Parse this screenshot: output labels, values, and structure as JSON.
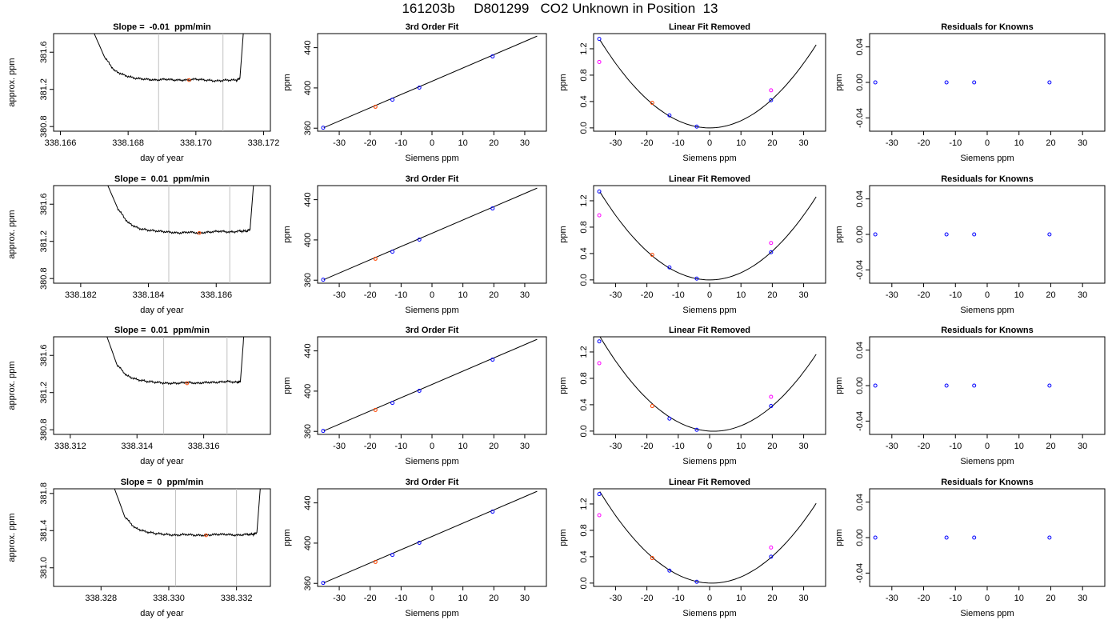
{
  "title": "161203b     D801299   CO2 Unknown in Position  13",
  "colors": {
    "known": "#0000ff",
    "unknown": "#ff00ff",
    "reference": "#ff4500",
    "curve": "#000000",
    "window": "#c0c0c0"
  },
  "chart_data": [
    {
      "type": "line",
      "row": 1,
      "title": "Slope =  -0.01  ppm/min",
      "xlabel": "day of year",
      "ylabel": "approx. ppm",
      "xlim": [
        338.1658,
        338.1722
      ],
      "ylim": [
        380.75,
        381.8
      ],
      "xticks": [
        "338.166",
        "338.168",
        "338.170",
        "338.172"
      ],
      "yticks": [
        "380.8",
        "381.2",
        "381.6"
      ],
      "window": [
        338.1689,
        338.1708
      ],
      "marker": [
        338.1698,
        381.3
      ],
      "trace": {
        "start": 338.167,
        "end": 338.1714,
        "level": 381.3,
        "x": [
          338.167,
          338.1673,
          338.1676,
          338.1679,
          338.1682,
          338.1685,
          338.1688,
          338.1691,
          338.1694,
          338.1697,
          338.17,
          338.1703,
          338.1706,
          338.1709,
          338.1712,
          338.1713,
          338.1714
        ],
        "y": [
          381.8,
          381.55,
          381.4,
          381.35,
          381.32,
          381.31,
          381.3,
          381.31,
          381.3,
          381.3,
          381.31,
          381.3,
          381.29,
          381.3,
          381.3,
          381.32,
          381.8
        ]
      }
    },
    {
      "type": "scatter",
      "row": 1,
      "title": "3rd Order Fit",
      "xlabel": "Siemens ppm",
      "ylabel": "ppm",
      "xlim": [
        -37,
        37
      ],
      "ylim": [
        357,
        454
      ],
      "xticks": [
        -30,
        -20,
        -10,
        0,
        10,
        20,
        30
      ],
      "yticks": [
        360,
        400,
        440
      ],
      "line": [
        [
          -35,
          360.5
        ],
        [
          34,
          451.5
        ]
      ],
      "points": [
        {
          "x": -35.2,
          "y": 360.5,
          "kind": "known"
        },
        {
          "x": -18.3,
          "y": 381.3,
          "kind": "reference"
        },
        {
          "x": -12.8,
          "y": 388.3,
          "kind": "known"
        },
        {
          "x": -4.1,
          "y": 400.3,
          "kind": "known"
        },
        {
          "x": 19.6,
          "y": 431.3,
          "kind": "known"
        }
      ]
    },
    {
      "type": "scatter",
      "row": 1,
      "title": "Linear Fit Removed",
      "xlabel": "Siemens ppm",
      "ylabel": "ppm",
      "xlim": [
        -37,
        37
      ],
      "ylim": [
        -0.05,
        1.43
      ],
      "xticks": [
        -30,
        -20,
        -10,
        0,
        10,
        20,
        30
      ],
      "yticks": [
        "0.0",
        "0.4",
        "0.8",
        "1.2"
      ],
      "curve": {
        "a": 0.00109,
        "b": 0,
        "c": 0,
        "from": -35,
        "to": 34
      },
      "points": [
        {
          "x": -35.2,
          "y": 1.35,
          "kind": "known"
        },
        {
          "x": -35.2,
          "y": 1.0,
          "kind": "unknown"
        },
        {
          "x": -18.3,
          "y": 0.38,
          "kind": "reference"
        },
        {
          "x": -12.8,
          "y": 0.19,
          "kind": "known"
        },
        {
          "x": -4.1,
          "y": 0.02,
          "kind": "known"
        },
        {
          "x": 19.6,
          "y": 0.42,
          "kind": "known"
        },
        {
          "x": 19.6,
          "y": 0.57,
          "kind": "unknown"
        }
      ]
    },
    {
      "type": "scatter",
      "row": 1,
      "title": "Residuals for Knowns",
      "xlabel": "Siemens ppm",
      "ylabel": "ppm",
      "xlim": [
        -37,
        37
      ],
      "ylim": [
        -0.055,
        0.055
      ],
      "xticks": [
        -30,
        -20,
        -10,
        0,
        10,
        20,
        30
      ],
      "yticks": [
        "-0.04",
        "0.00",
        "0.04"
      ],
      "points": [
        {
          "x": -35.2,
          "y": 0.0,
          "kind": "known"
        },
        {
          "x": -12.8,
          "y": 0.0,
          "kind": "known"
        },
        {
          "x": -4.1,
          "y": 0.0,
          "kind": "known"
        },
        {
          "x": 19.6,
          "y": 0.0,
          "kind": "known"
        }
      ]
    },
    {
      "type": "line",
      "row": 2,
      "title": "Slope =  0.01  ppm/min",
      "xlabel": "day of year",
      "ylabel": "approx. ppm",
      "xlim": [
        338.1812,
        338.1876
      ],
      "ylim": [
        380.75,
        381.8
      ],
      "xticks": [
        "338.182",
        "338.184",
        "338.186"
      ],
      "yticks": [
        "380.8",
        "381.2",
        "381.6"
      ],
      "window": [
        338.1846,
        338.1864
      ],
      "marker": [
        338.1855,
        381.29
      ],
      "trace": {
        "x": [
          338.1828,
          338.1831,
          338.1834,
          338.1837,
          338.184,
          338.1843,
          338.1846,
          338.1849,
          338.1852,
          338.1855,
          338.1858,
          338.1861,
          338.1864,
          338.1867,
          338.1869,
          338.187,
          338.1871
        ],
        "y": [
          381.8,
          381.55,
          381.4,
          381.34,
          381.32,
          381.31,
          381.3,
          381.29,
          381.3,
          381.29,
          381.3,
          381.31,
          381.3,
          381.31,
          381.31,
          381.33,
          381.8
        ]
      }
    },
    {
      "type": "scatter",
      "row": 2,
      "title": "3rd Order Fit",
      "xlabel": "Siemens ppm",
      "ylabel": "ppm",
      "xlim": [
        -37,
        37
      ],
      "ylim": [
        357,
        454
      ],
      "xticks": [
        -30,
        -20,
        -10,
        0,
        10,
        20,
        30
      ],
      "yticks": [
        360,
        400,
        440
      ],
      "line": [
        [
          -35,
          360.5
        ],
        [
          34,
          451.5
        ]
      ],
      "points": [
        {
          "x": -35.2,
          "y": 360.5,
          "kind": "known"
        },
        {
          "x": -18.3,
          "y": 381.3,
          "kind": "reference"
        },
        {
          "x": -12.8,
          "y": 388.3,
          "kind": "known"
        },
        {
          "x": -4.1,
          "y": 400.3,
          "kind": "known"
        },
        {
          "x": 19.6,
          "y": 431.3,
          "kind": "known"
        }
      ]
    },
    {
      "type": "scatter",
      "row": 2,
      "title": "Linear Fit Removed",
      "xlabel": "Siemens ppm",
      "ylabel": "ppm",
      "xlim": [
        -37,
        37
      ],
      "ylim": [
        -0.05,
        1.43
      ],
      "xticks": [
        -30,
        -20,
        -10,
        0,
        10,
        20,
        30
      ],
      "yticks": [
        "0.0",
        "0.4",
        "0.8",
        "1.2"
      ],
      "curve": {
        "a": 0.00109,
        "b": 0,
        "c": 0,
        "from": -35,
        "to": 34
      },
      "points": [
        {
          "x": -35.2,
          "y": 1.34,
          "kind": "known"
        },
        {
          "x": -35.2,
          "y": 0.98,
          "kind": "unknown"
        },
        {
          "x": -18.3,
          "y": 0.38,
          "kind": "reference"
        },
        {
          "x": -12.8,
          "y": 0.19,
          "kind": "known"
        },
        {
          "x": -4.1,
          "y": 0.02,
          "kind": "known"
        },
        {
          "x": 19.6,
          "y": 0.42,
          "kind": "known"
        },
        {
          "x": 19.6,
          "y": 0.56,
          "kind": "unknown"
        }
      ]
    },
    {
      "type": "scatter",
      "row": 2,
      "title": "Residuals for Knowns",
      "xlabel": "Siemens ppm",
      "ylabel": "ppm",
      "xlim": [
        -37,
        37
      ],
      "ylim": [
        -0.055,
        0.055
      ],
      "xticks": [
        -30,
        -20,
        -10,
        0,
        10,
        20,
        30
      ],
      "yticks": [
        "-0.04",
        "0.00",
        "0.04"
      ],
      "points": [
        {
          "x": -35.2,
          "y": 0.0,
          "kind": "known"
        },
        {
          "x": -12.8,
          "y": 0.0,
          "kind": "known"
        },
        {
          "x": -4.1,
          "y": 0.0,
          "kind": "known"
        },
        {
          "x": 19.6,
          "y": 0.0,
          "kind": "known"
        }
      ]
    },
    {
      "type": "line",
      "row": 3,
      "title": "Slope =  0.01  ppm/min",
      "xlabel": "day of year",
      "ylabel": "approx. ppm",
      "xlim": [
        338.3115,
        338.318
      ],
      "ylim": [
        380.75,
        381.8
      ],
      "xticks": [
        "338.312",
        "338.314",
        "338.316"
      ],
      "yticks": [
        "380.8",
        "381.2",
        "381.6"
      ],
      "window": [
        338.3148,
        338.3167
      ],
      "marker": [
        338.3155,
        381.3
      ],
      "trace": {
        "x": [
          338.3131,
          338.3134,
          338.3137,
          338.314,
          338.3143,
          338.3146,
          338.3149,
          338.3152,
          338.3155,
          338.3158,
          338.3161,
          338.3164,
          338.3167,
          338.317,
          338.3171,
          338.3172
        ],
        "y": [
          381.8,
          381.5,
          381.38,
          381.34,
          381.32,
          381.31,
          381.3,
          381.3,
          381.31,
          381.3,
          381.31,
          381.31,
          381.32,
          381.31,
          381.32,
          381.8
        ]
      }
    },
    {
      "type": "scatter",
      "row": 3,
      "title": "3rd Order Fit",
      "xlabel": "Siemens ppm",
      "ylabel": "ppm",
      "xlim": [
        -37,
        37
      ],
      "ylim": [
        357,
        454
      ],
      "xticks": [
        -30,
        -20,
        -10,
        0,
        10,
        20,
        30
      ],
      "yticks": [
        360,
        400,
        440
      ],
      "line": [
        [
          -35,
          360.5
        ],
        [
          34,
          451.5
        ]
      ],
      "points": [
        {
          "x": -35.2,
          "y": 360.5,
          "kind": "known"
        },
        {
          "x": -18.3,
          "y": 381.3,
          "kind": "reference"
        },
        {
          "x": -12.8,
          "y": 388.3,
          "kind": "known"
        },
        {
          "x": -4.1,
          "y": 400.3,
          "kind": "known"
        },
        {
          "x": 19.6,
          "y": 431.3,
          "kind": "known"
        }
      ]
    },
    {
      "type": "scatter",
      "row": 3,
      "title": "Linear Fit Removed",
      "xlabel": "Siemens ppm",
      "ylabel": "ppm",
      "xlim": [
        -37,
        37
      ],
      "ylim": [
        -0.05,
        1.43
      ],
      "xticks": [
        -30,
        -20,
        -10,
        0,
        10,
        20,
        30
      ],
      "yticks": [
        "0.0",
        "0.4",
        "0.8",
        "1.2"
      ],
      "curve": {
        "a": 0.00109,
        "b": -0.0028,
        "c": 0,
        "from": -35,
        "to": 34
      },
      "points": [
        {
          "x": -35.2,
          "y": 1.36,
          "kind": "known"
        },
        {
          "x": -35.2,
          "y": 1.03,
          "kind": "unknown"
        },
        {
          "x": -18.3,
          "y": 0.38,
          "kind": "reference"
        },
        {
          "x": -12.8,
          "y": 0.19,
          "kind": "known"
        },
        {
          "x": -4.1,
          "y": 0.02,
          "kind": "known"
        },
        {
          "x": 19.6,
          "y": 0.38,
          "kind": "known"
        },
        {
          "x": 19.6,
          "y": 0.52,
          "kind": "unknown"
        }
      ]
    },
    {
      "type": "scatter",
      "row": 3,
      "title": "Residuals for Knowns",
      "xlabel": "Siemens ppm",
      "ylabel": "ppm",
      "xlim": [
        -37,
        37
      ],
      "ylim": [
        -0.055,
        0.055
      ],
      "xticks": [
        -30,
        -20,
        -10,
        0,
        10,
        20,
        30
      ],
      "yticks": [
        "-0.04",
        "0.00",
        "0.04"
      ],
      "points": [
        {
          "x": -35.2,
          "y": 0.0,
          "kind": "known"
        },
        {
          "x": -12.8,
          "y": 0.0,
          "kind": "known"
        },
        {
          "x": -4.1,
          "y": 0.0,
          "kind": "known"
        },
        {
          "x": 19.6,
          "y": 0.0,
          "kind": "known"
        }
      ]
    },
    {
      "type": "line",
      "row": 4,
      "title": "Slope =  0  ppm/min",
      "xlabel": "day of year",
      "ylabel": "approx. ppm",
      "xlim": [
        338.3266,
        338.333
      ],
      "ylim": [
        380.8,
        381.85
      ],
      "xticks": [
        "338.328",
        "338.330",
        "338.332"
      ],
      "yticks": [
        "381.0",
        "381.4",
        "381.8"
      ],
      "window": [
        338.3302,
        338.332
      ],
      "marker": [
        338.3311,
        381.35
      ],
      "trace": {
        "x": [
          338.3284,
          338.3287,
          338.329,
          338.3293,
          338.3296,
          338.3299,
          338.3302,
          338.3305,
          338.3308,
          338.3311,
          338.3314,
          338.3317,
          338.332,
          338.3323,
          338.3325,
          338.3326,
          338.3327
        ],
        "y": [
          381.85,
          381.55,
          381.43,
          381.39,
          381.37,
          381.36,
          381.35,
          381.36,
          381.35,
          381.35,
          381.36,
          381.36,
          381.35,
          381.36,
          381.36,
          381.38,
          381.85
        ]
      }
    },
    {
      "type": "scatter",
      "row": 4,
      "title": "3rd Order Fit",
      "xlabel": "Siemens ppm",
      "ylabel": "ppm",
      "xlim": [
        -37,
        37
      ],
      "ylim": [
        357,
        454
      ],
      "xticks": [
        -30,
        -20,
        -10,
        0,
        10,
        20,
        30
      ],
      "yticks": [
        360,
        400,
        440
      ],
      "line": [
        [
          -35,
          360.5
        ],
        [
          34,
          451.5
        ]
      ],
      "points": [
        {
          "x": -35.2,
          "y": 360.5,
          "kind": "known"
        },
        {
          "x": -18.3,
          "y": 381.3,
          "kind": "reference"
        },
        {
          "x": -12.8,
          "y": 388.3,
          "kind": "known"
        },
        {
          "x": -4.1,
          "y": 400.3,
          "kind": "known"
        },
        {
          "x": 19.6,
          "y": 431.3,
          "kind": "known"
        }
      ]
    },
    {
      "type": "scatter",
      "row": 4,
      "title": "Linear Fit Removed",
      "xlabel": "Siemens ppm",
      "ylabel": "ppm",
      "xlim": [
        -37,
        37
      ],
      "ylim": [
        -0.05,
        1.43
      ],
      "xticks": [
        -30,
        -20,
        -10,
        0,
        10,
        20,
        30
      ],
      "yticks": [
        "0.0",
        "0.4",
        "0.8",
        "1.2"
      ],
      "curve": {
        "a": 0.00109,
        "b": -0.0015,
        "c": 0,
        "from": -35,
        "to": 34
      },
      "points": [
        {
          "x": -35.2,
          "y": 1.35,
          "kind": "known"
        },
        {
          "x": -35.2,
          "y": 1.03,
          "kind": "unknown"
        },
        {
          "x": -18.3,
          "y": 0.38,
          "kind": "reference"
        },
        {
          "x": -12.8,
          "y": 0.19,
          "kind": "known"
        },
        {
          "x": -4.1,
          "y": 0.02,
          "kind": "known"
        },
        {
          "x": 19.6,
          "y": 0.4,
          "kind": "known"
        },
        {
          "x": 19.6,
          "y": 0.54,
          "kind": "unknown"
        }
      ]
    },
    {
      "type": "scatter",
      "row": 4,
      "title": "Residuals for Knowns",
      "xlabel": "Siemens ppm",
      "ylabel": "ppm",
      "xlim": [
        -37,
        37
      ],
      "ylim": [
        -0.055,
        0.055
      ],
      "xticks": [
        -30,
        -20,
        -10,
        0,
        10,
        20,
        30
      ],
      "yticks": [
        "-0.04",
        "0.00",
        "0.04"
      ],
      "points": [
        {
          "x": -35.2,
          "y": 0.0,
          "kind": "known"
        },
        {
          "x": -12.8,
          "y": 0.0,
          "kind": "known"
        },
        {
          "x": -4.1,
          "y": 0.0,
          "kind": "known"
        },
        {
          "x": 19.6,
          "y": 0.0,
          "kind": "known"
        }
      ]
    }
  ]
}
